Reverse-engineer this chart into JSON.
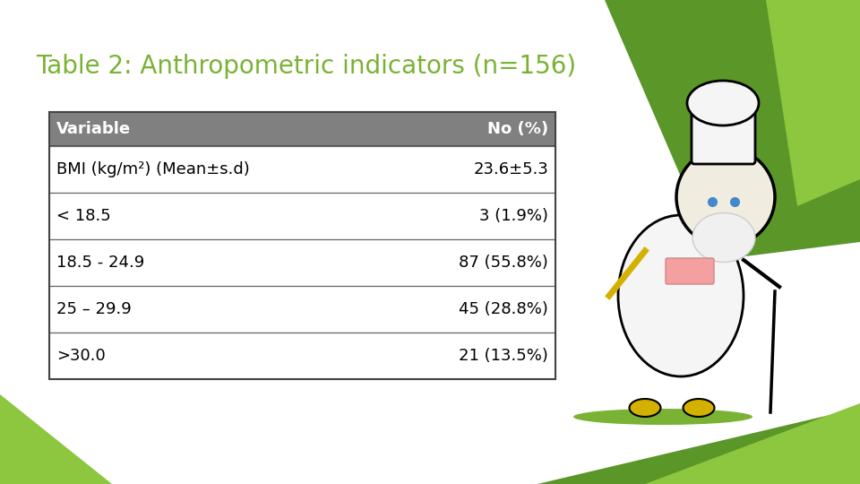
{
  "title": "Table 2: Anthropometric indicators (n=156)",
  "title_color": "#7ab234",
  "title_fontsize": 20,
  "bg_color": "#ffffff",
  "header": [
    "Variable",
    "No (%)"
  ],
  "header_bg": "#808080",
  "header_text_color": "#ffffff",
  "rows": [
    [
      "BMI (kg/m²) (Mean±s.d)",
      "23.6±5.3"
    ],
    [
      "< 18.5",
      "3 (1.9%)"
    ],
    [
      "18.5 - 24.9",
      "87 (55.8%)"
    ],
    [
      "25 – 29.9",
      "45 (28.8%)"
    ],
    [
      ">30.0",
      "21 (13.5%)"
    ]
  ],
  "table_text_color": "#000000",
  "table_fontsize": 13,
  "header_fontsize": 13,
  "green_dark": "#5a9e28",
  "green_light": "#8dc63f",
  "green_bottom": "#7ab234"
}
